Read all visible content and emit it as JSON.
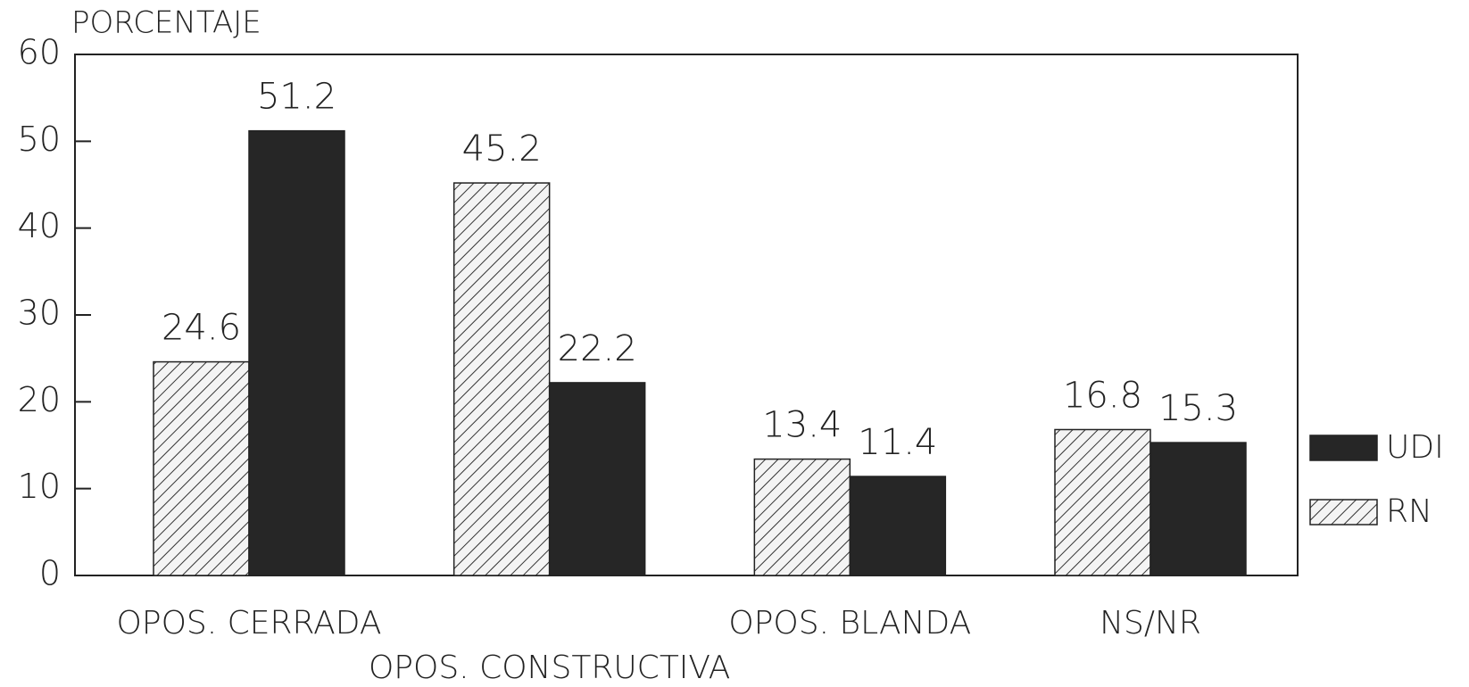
{
  "chart_data": {
    "type": "bar",
    "y_label": "PORCENTAJE",
    "categories": [
      "OPOS. CERRADA",
      "OPOS. CONSTRUCTIVA",
      "OPOS. BLANDA",
      "NS/NR"
    ],
    "series": [
      {
        "name": "RN",
        "color": "#333333",
        "hatch": true,
        "values": [
          24.6,
          45.2,
          13.4,
          16.8
        ]
      },
      {
        "name": "UDI",
        "color": "#262626",
        "hatch": false,
        "values": [
          51.2,
          22.2,
          11.4,
          15.3
        ]
      }
    ],
    "ylim": [
      0,
      60
    ],
    "yticks": [
      0,
      10,
      20,
      30,
      40,
      50,
      60
    ],
    "grid": false,
    "legend": "right"
  }
}
